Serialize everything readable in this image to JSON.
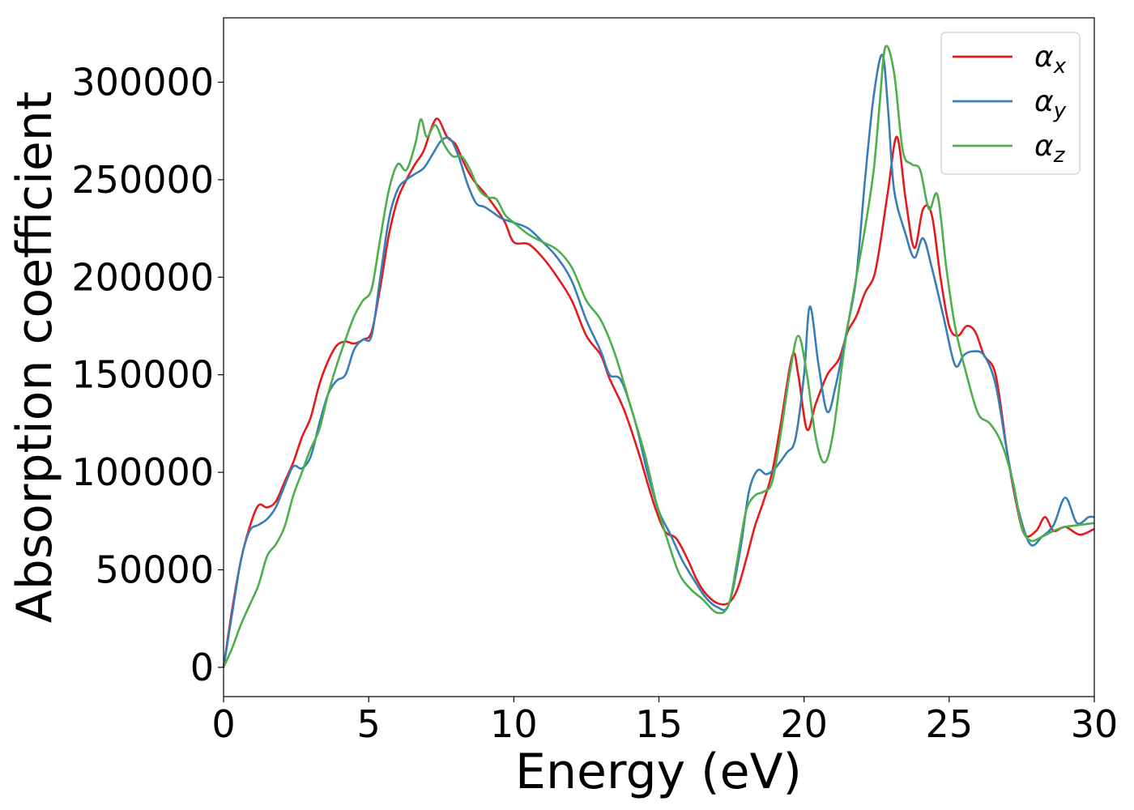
{
  "chart_data": {
    "type": "line",
    "title": "",
    "xlabel": "Energy (eV)",
    "ylabel": "Absorption coefficient",
    "xlim": [
      0,
      30
    ],
    "ylim": [
      -15000,
      333000
    ],
    "xticks": [
      0,
      5,
      10,
      15,
      20,
      25,
      30
    ],
    "yticks": [
      0,
      50000,
      100000,
      150000,
      200000,
      250000,
      300000
    ],
    "grid": false,
    "legend_position": "top-right",
    "series": [
      {
        "name": "αx",
        "name_base": "α",
        "name_sub": "x",
        "color": "#e41a1c",
        "points": [
          [
            0,
            0
          ],
          [
            0.3,
            30000
          ],
          [
            0.6,
            55000
          ],
          [
            0.9,
            72000
          ],
          [
            1.2,
            83000
          ],
          [
            1.5,
            82000
          ],
          [
            1.8,
            85000
          ],
          [
            2.1,
            95000
          ],
          [
            2.4,
            105000
          ],
          [
            2.7,
            118000
          ],
          [
            3.0,
            128000
          ],
          [
            3.3,
            145000
          ],
          [
            3.6,
            157000
          ],
          [
            3.9,
            165000
          ],
          [
            4.2,
            167000
          ],
          [
            4.5,
            166000
          ],
          [
            4.8,
            168000
          ],
          [
            5.1,
            172000
          ],
          [
            5.4,
            195000
          ],
          [
            5.7,
            222000
          ],
          [
            6.0,
            240000
          ],
          [
            6.3,
            250000
          ],
          [
            6.6,
            258000
          ],
          [
            6.9,
            265000
          ],
          [
            7.2,
            278000
          ],
          [
            7.4,
            281000
          ],
          [
            7.7,
            272000
          ],
          [
            8.0,
            268000
          ],
          [
            8.3,
            258000
          ],
          [
            8.6,
            250000
          ],
          [
            9.0,
            243000
          ],
          [
            9.4,
            235000
          ],
          [
            9.7,
            228000
          ],
          [
            10.0,
            218000
          ],
          [
            10.5,
            217000
          ],
          [
            11.0,
            210000
          ],
          [
            11.5,
            200000
          ],
          [
            12.0,
            188000
          ],
          [
            12.5,
            170000
          ],
          [
            13.0,
            160000
          ],
          [
            13.3,
            148000
          ],
          [
            13.8,
            132000
          ],
          [
            14.3,
            110000
          ],
          [
            14.8,
            85000
          ],
          [
            15.2,
            70000
          ],
          [
            15.6,
            66000
          ],
          [
            16.0,
            55000
          ],
          [
            16.3,
            45000
          ],
          [
            16.6,
            38000
          ],
          [
            17.0,
            33000
          ],
          [
            17.4,
            33000
          ],
          [
            17.7,
            40000
          ],
          [
            18.0,
            55000
          ],
          [
            18.3,
            72000
          ],
          [
            18.6,
            85000
          ],
          [
            18.9,
            100000
          ],
          [
            19.2,
            125000
          ],
          [
            19.6,
            160000
          ],
          [
            19.8,
            150000
          ],
          [
            20.1,
            122000
          ],
          [
            20.4,
            135000
          ],
          [
            20.8,
            150000
          ],
          [
            21.2,
            158000
          ],
          [
            21.5,
            172000
          ],
          [
            21.8,
            180000
          ],
          [
            22.1,
            192000
          ],
          [
            22.4,
            200000
          ],
          [
            22.6,
            215000
          ],
          [
            22.9,
            245000
          ],
          [
            23.2,
            272000
          ],
          [
            23.5,
            240000
          ],
          [
            23.8,
            215000
          ],
          [
            24.1,
            235000
          ],
          [
            24.4,
            232000
          ],
          [
            24.7,
            200000
          ],
          [
            25.0,
            175000
          ],
          [
            25.3,
            170000
          ],
          [
            25.6,
            175000
          ],
          [
            25.9,
            172000
          ],
          [
            26.2,
            160000
          ],
          [
            26.6,
            150000
          ],
          [
            27.0,
            110000
          ],
          [
            27.3,
            85000
          ],
          [
            27.6,
            68000
          ],
          [
            28.0,
            70000
          ],
          [
            28.3,
            77000
          ],
          [
            28.6,
            70000
          ],
          [
            29.0,
            72000
          ],
          [
            29.5,
            68000
          ],
          [
            30.0,
            71000
          ]
        ]
      },
      {
        "name": "αy",
        "name_base": "α",
        "name_sub": "y",
        "color": "#377eb8",
        "points": [
          [
            0,
            0
          ],
          [
            0.3,
            28000
          ],
          [
            0.6,
            55000
          ],
          [
            0.9,
            70000
          ],
          [
            1.2,
            73000
          ],
          [
            1.5,
            76000
          ],
          [
            1.8,
            82000
          ],
          [
            2.1,
            93000
          ],
          [
            2.4,
            103000
          ],
          [
            2.7,
            102000
          ],
          [
            3.0,
            108000
          ],
          [
            3.3,
            125000
          ],
          [
            3.6,
            140000
          ],
          [
            3.9,
            147000
          ],
          [
            4.2,
            150000
          ],
          [
            4.5,
            163000
          ],
          [
            4.8,
            168000
          ],
          [
            5.1,
            170000
          ],
          [
            5.4,
            200000
          ],
          [
            5.7,
            230000
          ],
          [
            6.0,
            245000
          ],
          [
            6.3,
            250000
          ],
          [
            6.6,
            253000
          ],
          [
            6.9,
            256000
          ],
          [
            7.2,
            263000
          ],
          [
            7.5,
            270000
          ],
          [
            7.8,
            271000
          ],
          [
            8.1,
            262000
          ],
          [
            8.4,
            248000
          ],
          [
            8.7,
            238000
          ],
          [
            9.0,
            236000
          ],
          [
            9.3,
            233000
          ],
          [
            9.6,
            230000
          ],
          [
            10.0,
            228000
          ],
          [
            10.5,
            225000
          ],
          [
            11.0,
            218000
          ],
          [
            11.5,
            210000
          ],
          [
            12.0,
            198000
          ],
          [
            12.5,
            178000
          ],
          [
            13.0,
            162000
          ],
          [
            13.3,
            150000
          ],
          [
            13.7,
            147000
          ],
          [
            14.2,
            125000
          ],
          [
            14.6,
            100000
          ],
          [
            15.0,
            80000
          ],
          [
            15.4,
            68000
          ],
          [
            15.8,
            55000
          ],
          [
            16.2,
            45000
          ],
          [
            16.6,
            36000
          ],
          [
            17.0,
            31000
          ],
          [
            17.4,
            32000
          ],
          [
            17.8,
            60000
          ],
          [
            18.1,
            90000
          ],
          [
            18.4,
            101000
          ],
          [
            18.7,
            99000
          ],
          [
            19.0,
            102000
          ],
          [
            19.4,
            110000
          ],
          [
            19.7,
            117000
          ],
          [
            20.0,
            150000
          ],
          [
            20.2,
            185000
          ],
          [
            20.5,
            155000
          ],
          [
            20.8,
            131000
          ],
          [
            21.1,
            145000
          ],
          [
            21.5,
            175000
          ],
          [
            21.8,
            200000
          ],
          [
            22.1,
            250000
          ],
          [
            22.4,
            293000
          ],
          [
            22.7,
            314000
          ],
          [
            22.9,
            285000
          ],
          [
            23.1,
            245000
          ],
          [
            23.5,
            222000
          ],
          [
            23.8,
            210000
          ],
          [
            24.1,
            220000
          ],
          [
            24.4,
            205000
          ],
          [
            24.8,
            180000
          ],
          [
            25.2,
            155000
          ],
          [
            25.5,
            160000
          ],
          [
            25.8,
            162000
          ],
          [
            26.2,
            160000
          ],
          [
            26.6,
            145000
          ],
          [
            27.0,
            110000
          ],
          [
            27.4,
            80000
          ],
          [
            27.8,
            63000
          ],
          [
            28.2,
            67000
          ],
          [
            28.6,
            73000
          ],
          [
            29.0,
            87000
          ],
          [
            29.4,
            74000
          ],
          [
            29.8,
            77000
          ],
          [
            30.0,
            77000
          ]
        ]
      },
      {
        "name": "αz",
        "name_base": "α",
        "name_sub": "z",
        "color": "#4daf4a",
        "points": [
          [
            0,
            0
          ],
          [
            0.3,
            10000
          ],
          [
            0.6,
            22000
          ],
          [
            0.9,
            32000
          ],
          [
            1.2,
            42000
          ],
          [
            1.5,
            57000
          ],
          [
            1.8,
            63000
          ],
          [
            2.1,
            72000
          ],
          [
            2.4,
            88000
          ],
          [
            2.7,
            100000
          ],
          [
            3.0,
            112000
          ],
          [
            3.3,
            122000
          ],
          [
            3.6,
            140000
          ],
          [
            3.9,
            155000
          ],
          [
            4.2,
            168000
          ],
          [
            4.5,
            180000
          ],
          [
            4.8,
            188000
          ],
          [
            5.1,
            194000
          ],
          [
            5.4,
            220000
          ],
          [
            5.7,
            245000
          ],
          [
            6.0,
            258000
          ],
          [
            6.3,
            255000
          ],
          [
            6.6,
            268000
          ],
          [
            6.8,
            281000
          ],
          [
            7.0,
            272000
          ],
          [
            7.3,
            278000
          ],
          [
            7.6,
            268000
          ],
          [
            7.9,
            262000
          ],
          [
            8.2,
            262000
          ],
          [
            8.5,
            255000
          ],
          [
            8.8,
            245000
          ],
          [
            9.1,
            241000
          ],
          [
            9.4,
            240000
          ],
          [
            9.7,
            232000
          ],
          [
            10.0,
            228000
          ],
          [
            10.5,
            222000
          ],
          [
            11.0,
            218000
          ],
          [
            11.5,
            214000
          ],
          [
            12.0,
            205000
          ],
          [
            12.5,
            188000
          ],
          [
            13.0,
            178000
          ],
          [
            13.5,
            160000
          ],
          [
            14.0,
            135000
          ],
          [
            14.5,
            110000
          ],
          [
            14.9,
            85000
          ],
          [
            15.3,
            65000
          ],
          [
            15.7,
            48000
          ],
          [
            16.1,
            40000
          ],
          [
            16.5,
            35000
          ],
          [
            17.0,
            28000
          ],
          [
            17.4,
            32000
          ],
          [
            17.7,
            55000
          ],
          [
            18.0,
            80000
          ],
          [
            18.3,
            88000
          ],
          [
            18.6,
            90000
          ],
          [
            18.9,
            95000
          ],
          [
            19.2,
            120000
          ],
          [
            19.5,
            150000
          ],
          [
            19.8,
            170000
          ],
          [
            20.1,
            150000
          ],
          [
            20.4,
            118000
          ],
          [
            20.7,
            105000
          ],
          [
            21.0,
            120000
          ],
          [
            21.4,
            165000
          ],
          [
            21.8,
            200000
          ],
          [
            22.1,
            225000
          ],
          [
            22.4,
            255000
          ],
          [
            22.6,
            288000
          ],
          [
            22.8,
            318000
          ],
          [
            23.1,
            305000
          ],
          [
            23.4,
            265000
          ],
          [
            23.7,
            258000
          ],
          [
            24.0,
            255000
          ],
          [
            24.3,
            235000
          ],
          [
            24.6,
            242000
          ],
          [
            24.9,
            205000
          ],
          [
            25.2,
            175000
          ],
          [
            25.6,
            150000
          ],
          [
            26.0,
            130000
          ],
          [
            26.4,
            125000
          ],
          [
            26.8,
            115000
          ],
          [
            27.2,
            95000
          ],
          [
            27.5,
            72000
          ],
          [
            27.8,
            65000
          ],
          [
            28.2,
            67000
          ],
          [
            28.6,
            70000
          ],
          [
            29.0,
            72000
          ],
          [
            29.5,
            73000
          ],
          [
            30.0,
            74000
          ]
        ]
      }
    ]
  }
}
